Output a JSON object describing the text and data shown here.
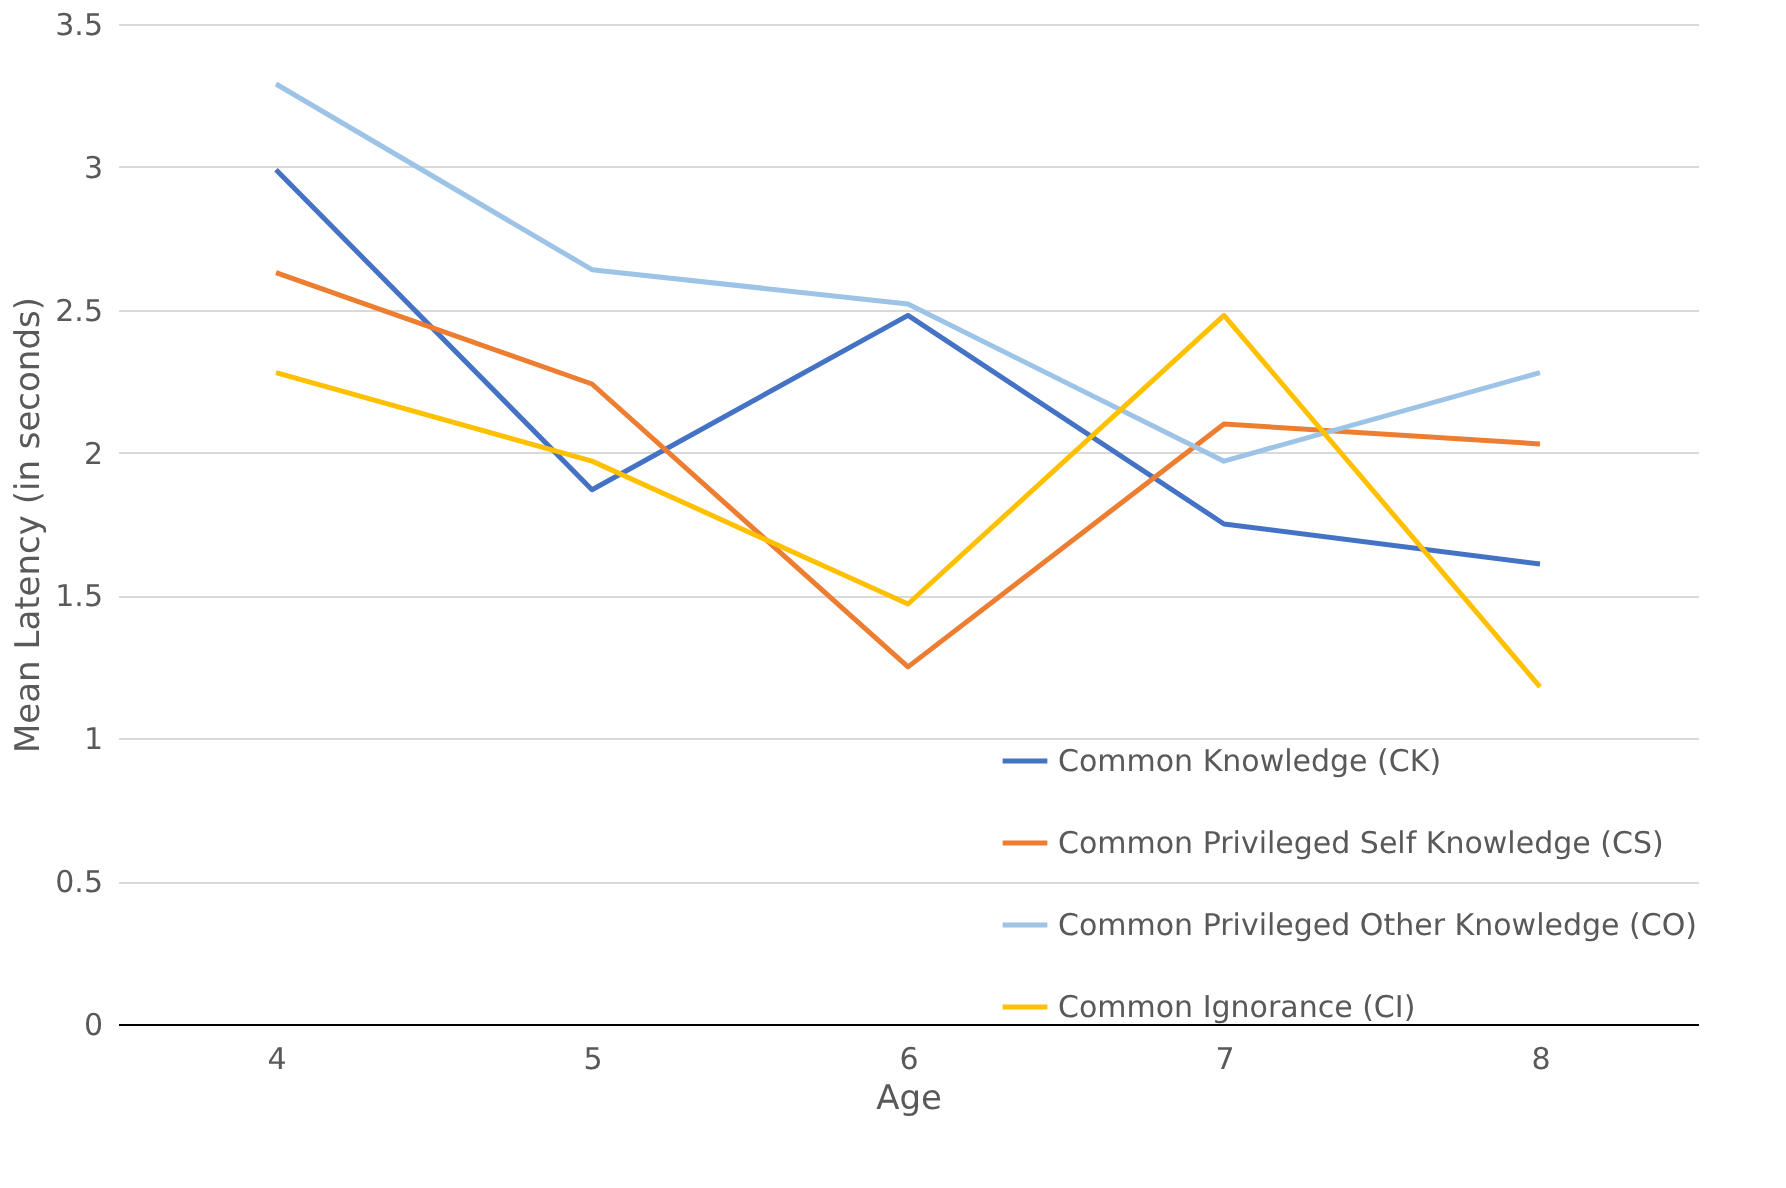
{
  "chart_data": {
    "type": "line",
    "xlabel": "Age",
    "ylabel": "Mean Latency (in seconds)",
    "categories": [
      "4",
      "5",
      "6",
      "7",
      "8"
    ],
    "series": [
      {
        "name": "Common Knowledge (CK)",
        "color": "#4472c4",
        "values": [
          2.99,
          1.87,
          2.48,
          1.75,
          1.61
        ]
      },
      {
        "name": "Common Privileged Self Knowledge (CS)",
        "color": "#ed7d31",
        "values": [
          2.63,
          2.24,
          1.25,
          2.1,
          2.03
        ]
      },
      {
        "name": "Common Privileged Other Knowledge (CO)",
        "color": "#9dc3e6",
        "values": [
          3.29,
          2.64,
          2.52,
          1.97,
          2.28
        ]
      },
      {
        "name": "Common Ignorance (CI)",
        "color": "#ffc000",
        "values": [
          2.28,
          1.97,
          1.47,
          2.48,
          1.18
        ]
      }
    ],
    "ylim": [
      0,
      3.5
    ],
    "yticks": [
      0,
      0.5,
      1,
      1.5,
      2,
      2.5,
      3,
      3.5
    ],
    "grid": "y",
    "legend": "bottom right",
    "marker": "none",
    "line_style": "solid"
  }
}
